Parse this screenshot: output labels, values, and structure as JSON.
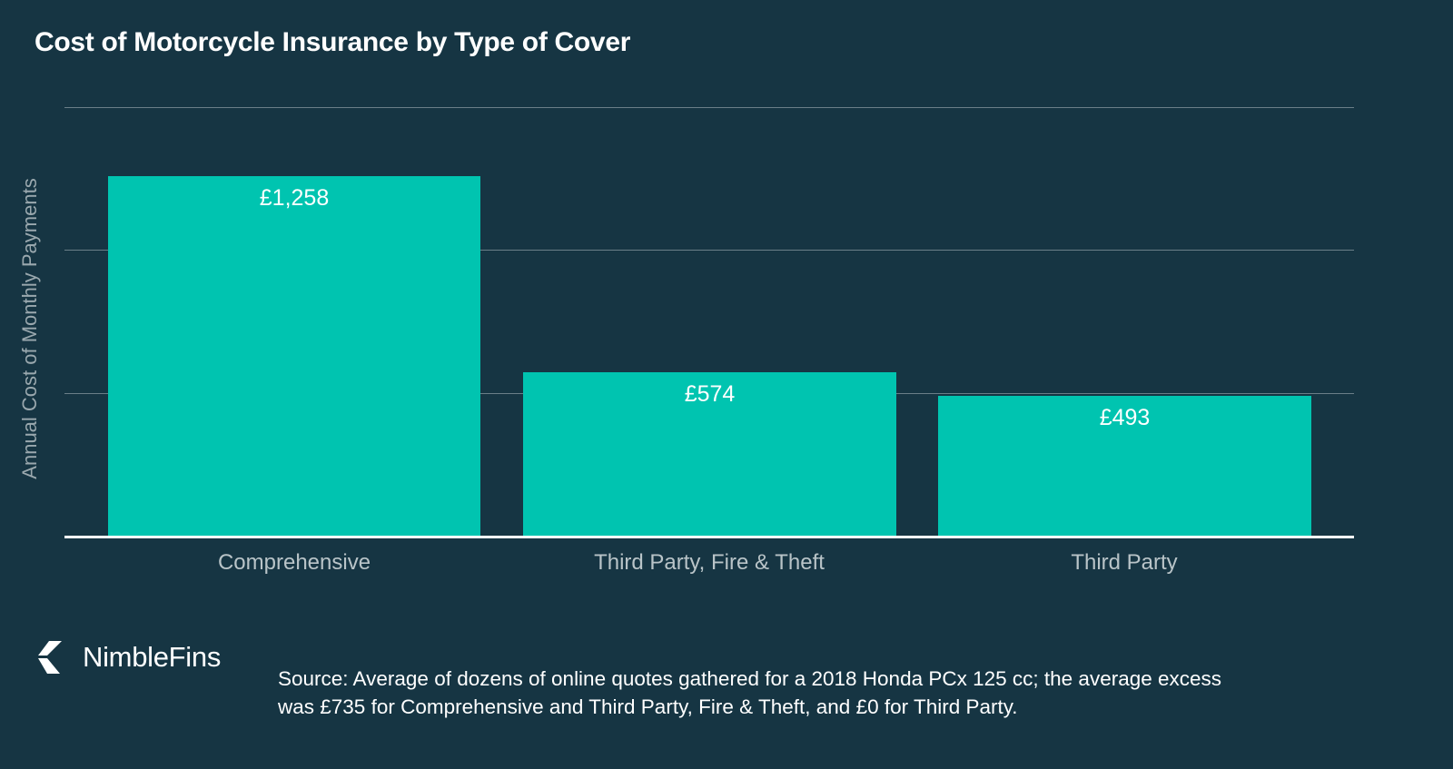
{
  "chart_data": {
    "type": "bar",
    "title": "Cost of Motorcycle Insurance by Type of Cover",
    "xlabel": "",
    "ylabel": "Annual Cost of Monthly Payments",
    "categories": [
      "Comprehensive",
      "Third Party, Fire & Theft",
      "Third Party"
    ],
    "values": [
      1258,
      574,
      493
    ],
    "value_labels": [
      "£1,258",
      "£574",
      "£493"
    ],
    "ylim": [
      0,
      1500
    ],
    "gridlines": [
      500,
      1000,
      1500
    ],
    "grid": true,
    "y_tick_labels_shown": false,
    "legend": null,
    "bar_color": "#00C4B0",
    "background_color": "#163543"
  },
  "header": {
    "title": "Cost of Motorcycle Insurance by Type of Cover"
  },
  "axis": {
    "ylabel": "Annual Cost of Monthly Payments"
  },
  "bars": [
    {
      "category": "Comprehensive",
      "label": "£1,258"
    },
    {
      "category": "Third Party, Fire & Theft",
      "label": "£574"
    },
    {
      "category": "Third Party",
      "label": "£493"
    }
  ],
  "footer": {
    "brand": "NimbleFins",
    "brand_icon": "chevron-left-logo-icon",
    "source_line1": "Source: Average of dozens of online quotes gathered for a 2018 Honda PCx 125 cc; the average excess",
    "source_line2": "was £735 for Comprehensive and Third Party, Fire & Theft, and £0 for Third Party."
  },
  "colors": {
    "background": "#163543",
    "bar": "#00C4B0",
    "gridline": "#6B7F88",
    "axis_text": "#B9C4C8"
  }
}
